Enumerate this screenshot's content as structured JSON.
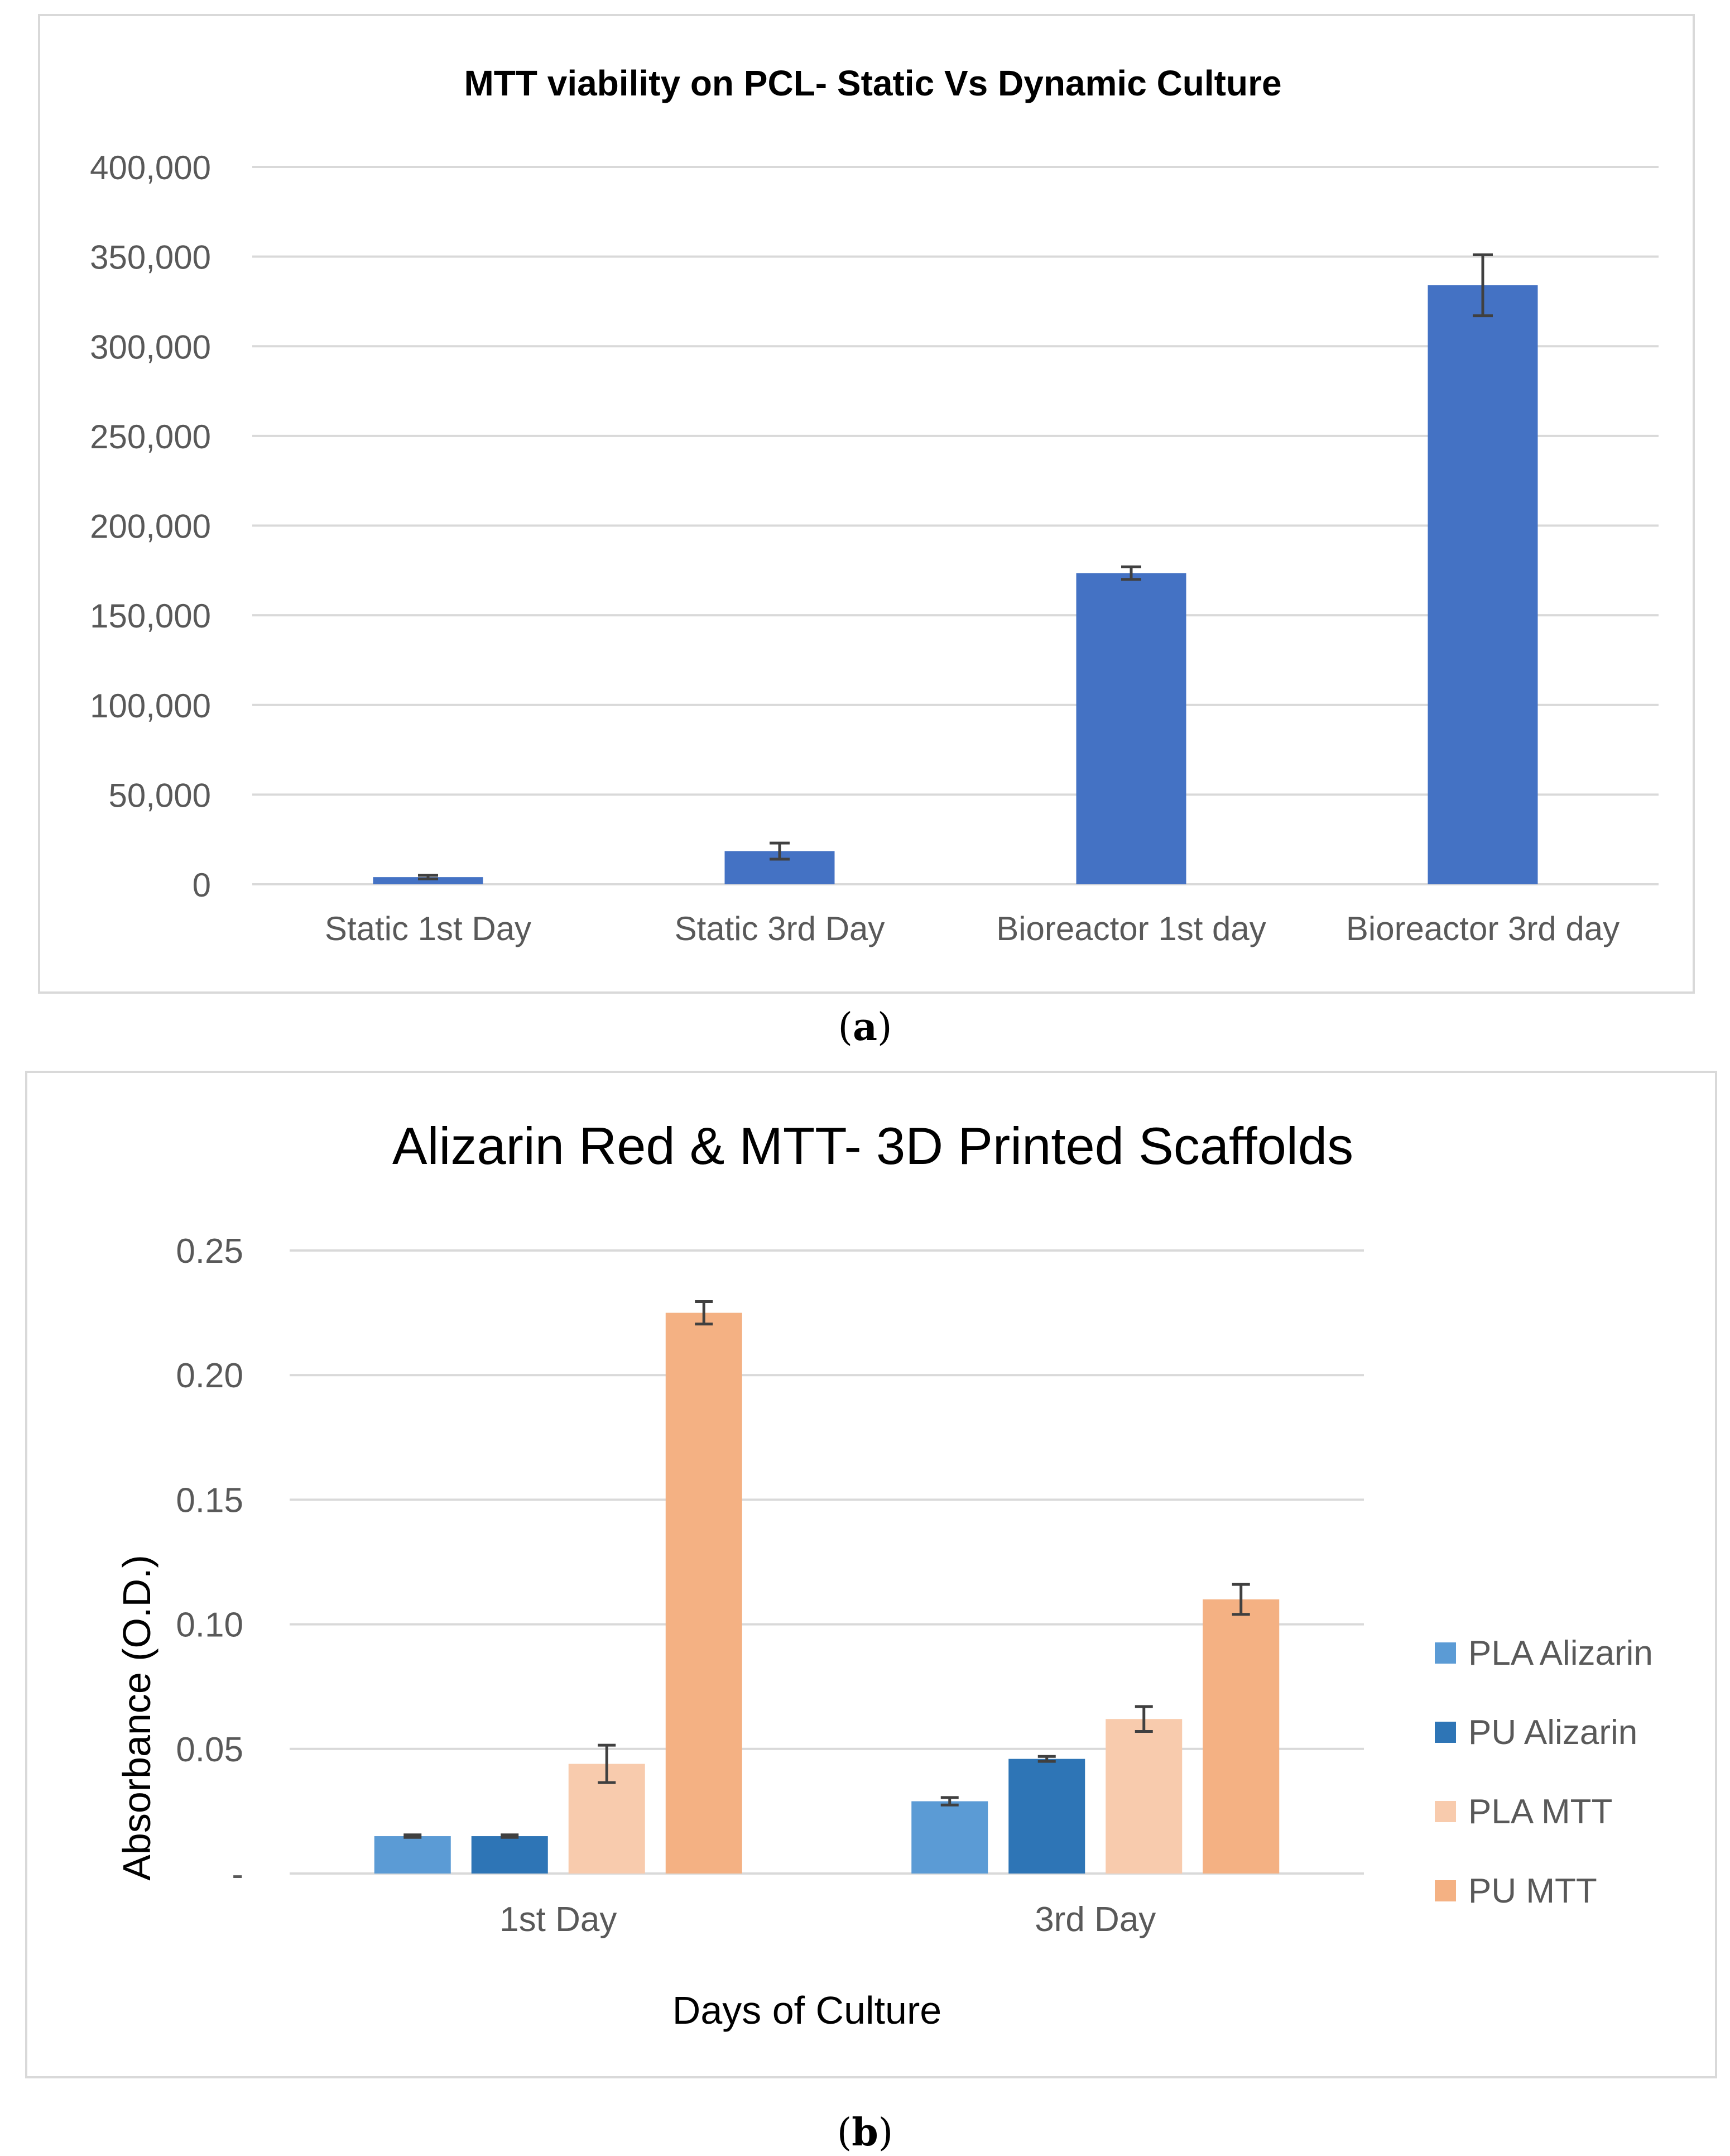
{
  "colors": {
    "bar_a": "#4472c4",
    "grid": "#d9d9d9",
    "axis_text": "#595959",
    "title_a": "#404040",
    "title_b": "#595959",
    "error_bar": "#404040",
    "series_b": [
      "#5b9bd5",
      "#2e75b6",
      "#f8cbad",
      "#f4b183"
    ]
  },
  "captions": {
    "a": "a",
    "b": "b"
  },
  "chart_data": [
    {
      "type": "bar",
      "title": "MTT viability on PCL- Static Vs Dynamic Culture",
      "categories": [
        "Static 1st Day",
        "Static 3rd Day",
        "Bioreactor 1st day",
        "Bioreactor 3rd day"
      ],
      "values": [
        4000,
        18500,
        173500,
        334000
      ],
      "errors": [
        1000,
        4500,
        3500,
        17000
      ],
      "ylim": [
        0,
        400000
      ],
      "yticks": [
        0,
        50000,
        100000,
        150000,
        200000,
        250000,
        300000,
        350000,
        400000
      ],
      "ytick_labels": [
        "0",
        "50,000",
        "100,000",
        "150,000",
        "200,000",
        "250,000",
        "300,000",
        "350,000",
        "400,000"
      ],
      "xlabel": "",
      "ylabel": "",
      "grid": true,
      "legend": "none"
    },
    {
      "type": "bar",
      "title": "Alizarin Red & MTT- 3D Printed Scaffolds",
      "categories": [
        "1st Day",
        "3rd Day"
      ],
      "series": [
        {
          "name": "PLA Alizarin",
          "values": [
            0.015,
            0.029
          ],
          "errors": [
            0.0005,
            0.0015
          ]
        },
        {
          "name": "PU Alizarin",
          "values": [
            0.015,
            0.046
          ],
          "errors": [
            0.0005,
            0.001
          ]
        },
        {
          "name": "PLA MTT",
          "values": [
            0.044,
            0.062
          ],
          "errors": [
            0.0075,
            0.005
          ]
        },
        {
          "name": "PU MTT",
          "values": [
            0.225,
            0.11
          ],
          "errors": [
            0.0045,
            0.006
          ]
        }
      ],
      "ylim": [
        0,
        0.25
      ],
      "yticks": [
        0,
        0.05,
        0.1,
        0.15,
        0.2,
        0.25
      ],
      "ytick_labels": [
        "-",
        "0.05",
        "0.10",
        "0.15",
        "0.20",
        "0.25"
      ],
      "xlabel": "Days of Culture",
      "ylabel": "Absorbance (O.D.)",
      "grid": true,
      "legend": "right"
    }
  ]
}
